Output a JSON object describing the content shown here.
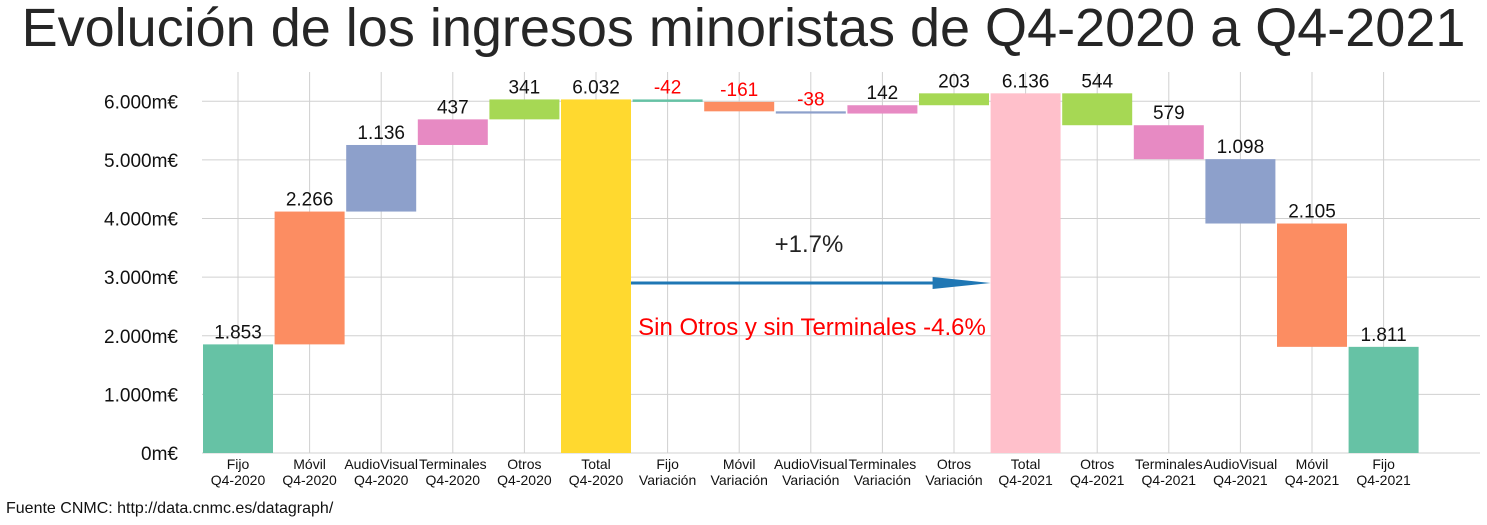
{
  "chart_data": {
    "type": "waterfall",
    "title": "Evolución de los ingresos minoristas de Q4-2020 a Q4-2021",
    "source": "Fuente CNMC: http://data.cnmc.es/datagraph/",
    "ylim": [
      0,
      6500
    ],
    "yticks": [
      {
        "value": 0,
        "label": "0m€"
      },
      {
        "value": 1000,
        "label": "1.000m€"
      },
      {
        "value": 2000,
        "label": "2.000m€"
      },
      {
        "value": 3000,
        "label": "3.000m€"
      },
      {
        "value": 4000,
        "label": "4.000m€"
      },
      {
        "value": 5000,
        "label": "5.000m€"
      },
      {
        "value": 6000,
        "label": "6.000m€"
      }
    ],
    "grid": true,
    "bars": [
      {
        "category": [
          "Fijo",
          "Q4-2020"
        ],
        "start": 0,
        "end": 1853,
        "label": "1.853",
        "color": "#66c2a5"
      },
      {
        "category": [
          "Móvil",
          "Q4-2020"
        ],
        "start": 1853,
        "end": 4119,
        "label": "2.266",
        "color": "#fc8d62"
      },
      {
        "category": [
          "AudioVisual",
          "Q4-2020"
        ],
        "start": 4119,
        "end": 5255,
        "label": "1.136",
        "color": "#8da0cb"
      },
      {
        "category": [
          "Terminales",
          "Q4-2020"
        ],
        "start": 5255,
        "end": 5692,
        "label": "437",
        "color": "#e78ac3"
      },
      {
        "category": [
          "Otros",
          "Q4-2020"
        ],
        "start": 5692,
        "end": 6032,
        "label": "341",
        "color": "#a6d854"
      },
      {
        "category": [
          "Total",
          "Q4-2020"
        ],
        "start": 0,
        "end": 6032,
        "label": "6.032",
        "color": "#ffd92f"
      },
      {
        "category": [
          "Fijo",
          "Variación"
        ],
        "start": 6032,
        "end": 5990,
        "label": "-42",
        "color": "#66c2a5",
        "negative": true
      },
      {
        "category": [
          "Móvil",
          "Variación"
        ],
        "start": 5990,
        "end": 5829,
        "label": "-161",
        "color": "#fc8d62",
        "negative": true
      },
      {
        "category": [
          "AudioVisual",
          "Variación"
        ],
        "start": 5829,
        "end": 5791,
        "label": "-38",
        "color": "#8da0cb",
        "negative": true
      },
      {
        "category": [
          "Terminales",
          "Variación"
        ],
        "start": 5791,
        "end": 5933,
        "label": "142",
        "color": "#e78ac3"
      },
      {
        "category": [
          "Otros",
          "Variación"
        ],
        "start": 5933,
        "end": 6136,
        "label": "203",
        "color": "#a6d854"
      },
      {
        "category": [
          "Total",
          "Q4-2021"
        ],
        "start": 0,
        "end": 6136,
        "label": "6.136",
        "color": "#ffc0cb"
      },
      {
        "category": [
          "Otros",
          "Q4-2021"
        ],
        "start": 5592,
        "end": 6136,
        "label": "544",
        "color": "#a6d854"
      },
      {
        "category": [
          "Terminales",
          "Q4-2021"
        ],
        "start": 5013,
        "end": 5592,
        "label": "579",
        "color": "#e78ac3"
      },
      {
        "category": [
          "AudioVisual",
          "Q4-2021"
        ],
        "start": 3915,
        "end": 5013,
        "label": "1.098",
        "color": "#8da0cb"
      },
      {
        "category": [
          "Móvil",
          "Q4-2021"
        ],
        "start": 1811,
        "end": 3915,
        "label": "2.105",
        "color": "#fc8d62"
      },
      {
        "category": [
          "Fijo",
          "Q4-2021"
        ],
        "start": 0,
        "end": 1811,
        "label": "1.811",
        "color": "#66c2a5"
      }
    ],
    "annotations": [
      {
        "text": "+1.7%",
        "kind": "growth"
      },
      {
        "text": "Sin Otros y sin Terminales -4.6%",
        "kind": "red"
      }
    ],
    "arrow": {
      "from_category_index": 5,
      "to_category_index": 11,
      "y": 2900,
      "color": "#1f77b4"
    }
  }
}
